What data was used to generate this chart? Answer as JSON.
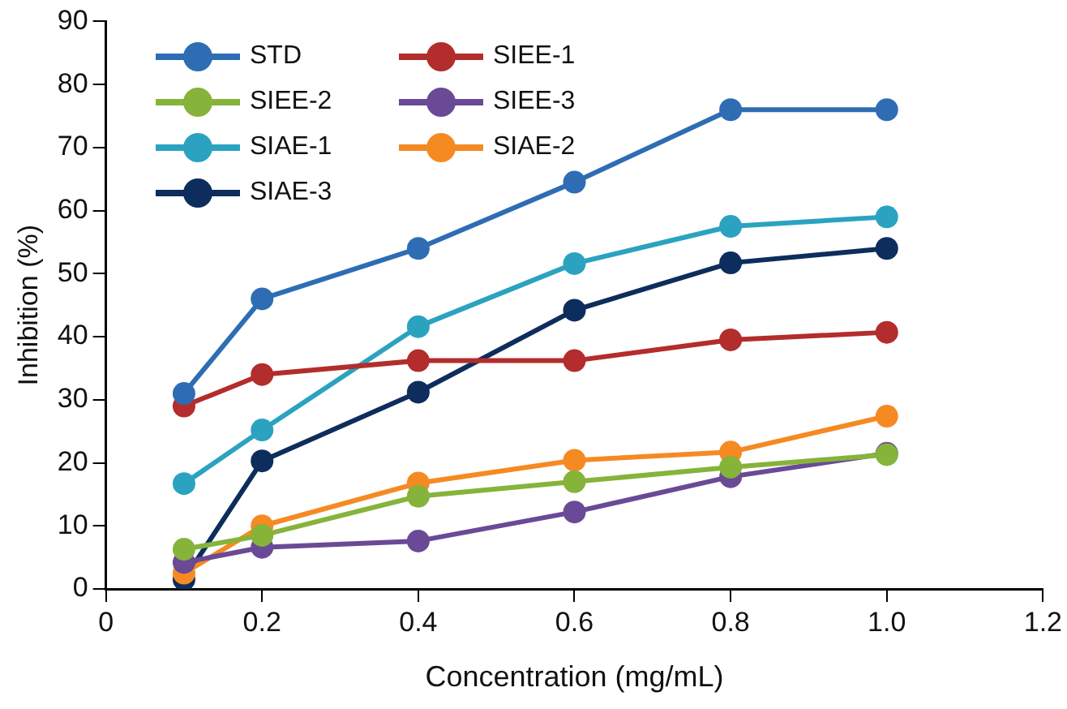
{
  "chart_data": {
    "type": "line",
    "xlabel": "Concentration (mg/mL)",
    "ylabel": "Inhibition (%)",
    "x": [
      0.1,
      0.2,
      0.4,
      0.6,
      0.8,
      1.0
    ],
    "series": [
      {
        "name": "STD",
        "color": "#2e6db4",
        "values": [
          31,
          46,
          54,
          64.5,
          76,
          76
        ]
      },
      {
        "name": "SIEE-1",
        "color": "#b22d2b",
        "values": [
          29,
          34,
          36.2,
          36.2,
          39.5,
          40.7
        ]
      },
      {
        "name": "SIEE-2",
        "color": "#86b33a",
        "values": [
          6.3,
          8.5,
          14.7,
          17,
          19.3,
          21.3
        ]
      },
      {
        "name": "SIEE-3",
        "color": "#6a4a96",
        "values": [
          4.2,
          6.6,
          7.6,
          12.2,
          17.8,
          21.5
        ]
      },
      {
        "name": "SIAE-1",
        "color": "#2ba3c0",
        "values": [
          16.7,
          25.2,
          41.6,
          51.6,
          57.5,
          59
        ]
      },
      {
        "name": "SIAE-2",
        "color": "#f58a23",
        "values": [
          2.5,
          10,
          16.8,
          20.4,
          21.7,
          27.4
        ]
      },
      {
        "name": "SIAE-3",
        "color": "#0d2d5c",
        "values": [
          1.5,
          20.3,
          31.2,
          44.2,
          51.7,
          54
        ]
      }
    ],
    "xlim": [
      0,
      1.2
    ],
    "xticks": [
      0,
      {
        "value": 0.2,
        "label": "0.2"
      },
      {
        "value": 0.4,
        "label": "0.4"
      },
      {
        "value": 0.6,
        "label": "0.6"
      },
      {
        "value": 0.8,
        "label": "0.8"
      },
      {
        "value": 1.0,
        "label": "1.0"
      },
      {
        "value": 1.2,
        "label": "1.2"
      }
    ],
    "ylim": [
      0,
      90
    ],
    "yticks": [
      0,
      10,
      20,
      30,
      40,
      50,
      60,
      70,
      80,
      90
    ],
    "grid": false,
    "legend": "top left",
    "marker": "circle",
    "line_style": "solid"
  }
}
